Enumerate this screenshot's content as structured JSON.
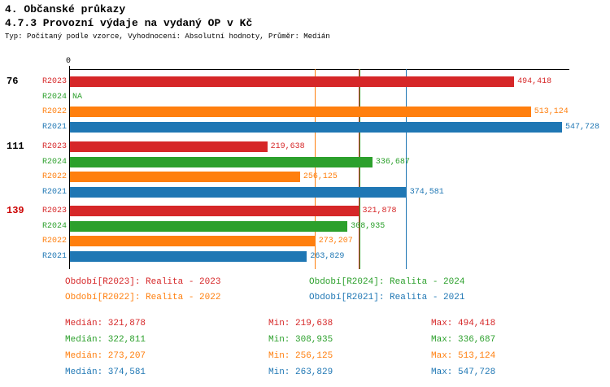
{
  "header": {
    "title1": "4. Občanské průkazy",
    "title2": "4.7.3 Provozní výdaje na vydaný OP v Kč",
    "subtitle": "Typ: Počítaný podle vzorce, Vyhodnocení: Absolutní hodnoty, Průměr: Medián"
  },
  "chart_data": {
    "type": "bar",
    "orientation": "horizontal",
    "grid": "median-lines-only",
    "legend_position": "bottom",
    "value_axis": {
      "min": 0,
      "zero_tick_label": "0",
      "max_value_shown": 547728
    },
    "series": [
      {
        "id": "R2023",
        "label": "R2023",
        "color": "#d62728",
        "legend": "Období[R2023]: Realita - 2023",
        "median": 321878
      },
      {
        "id": "R2024",
        "label": "R2024",
        "color": "#2ca02c",
        "legend": "Období[R2024]: Realita - 2024",
        "median": 322811
      },
      {
        "id": "R2022",
        "label": "R2022",
        "color": "#ff7f0e",
        "legend": "Období[R2022]: Realita - 2022",
        "median": 273207
      },
      {
        "id": "R2021",
        "label": "R2021",
        "color": "#1f77b4",
        "legend": "Období[R2021]: Realita - 2021",
        "median": 374581
      }
    ],
    "groups": [
      {
        "label": "76",
        "label_color": "#000000",
        "bars": [
          {
            "series": "R2023",
            "value": 494418,
            "display": "494,418"
          },
          {
            "series": "R2024",
            "value": null,
            "display": "NA"
          },
          {
            "series": "R2022",
            "value": 513124,
            "display": "513,124"
          },
          {
            "series": "R2021",
            "value": 547728,
            "display": "547,728"
          }
        ]
      },
      {
        "label": "111",
        "label_color": "#000000",
        "bars": [
          {
            "series": "R2023",
            "value": 219638,
            "display": "219,638"
          },
          {
            "series": "R2024",
            "value": 336687,
            "display": "336,687"
          },
          {
            "series": "R2022",
            "value": 256125,
            "display": "256,125"
          },
          {
            "series": "R2021",
            "value": 374581,
            "display": "374,581"
          }
        ]
      },
      {
        "label": "139",
        "label_color": "#cc0000",
        "bars": [
          {
            "series": "R2023",
            "value": 321878,
            "display": "321,878"
          },
          {
            "series": "R2024",
            "value": 308935,
            "display": "308,935"
          },
          {
            "series": "R2022",
            "value": 273207,
            "display": "273,207"
          },
          {
            "series": "R2021",
            "value": 263829,
            "display": "263,829"
          }
        ]
      }
    ]
  },
  "stats": {
    "rows": [
      {
        "series": "R2023",
        "color": "#d62728",
        "median": "Medián: 321,878",
        "min": "Min: 219,638",
        "max": "Max: 494,418"
      },
      {
        "series": "R2024",
        "color": "#2ca02c",
        "median": "Medián: 322,811",
        "min": "Min: 308,935",
        "max": "Max: 336,687"
      },
      {
        "series": "R2022",
        "color": "#ff7f0e",
        "median": "Medián: 273,207",
        "min": "Min: 256,125",
        "max": "Max: 513,124"
      },
      {
        "series": "R2021",
        "color": "#1f77b4",
        "median": "Medián: 374,581",
        "min": "Min: 263,829",
        "max": "Max: 547,728"
      }
    ]
  }
}
